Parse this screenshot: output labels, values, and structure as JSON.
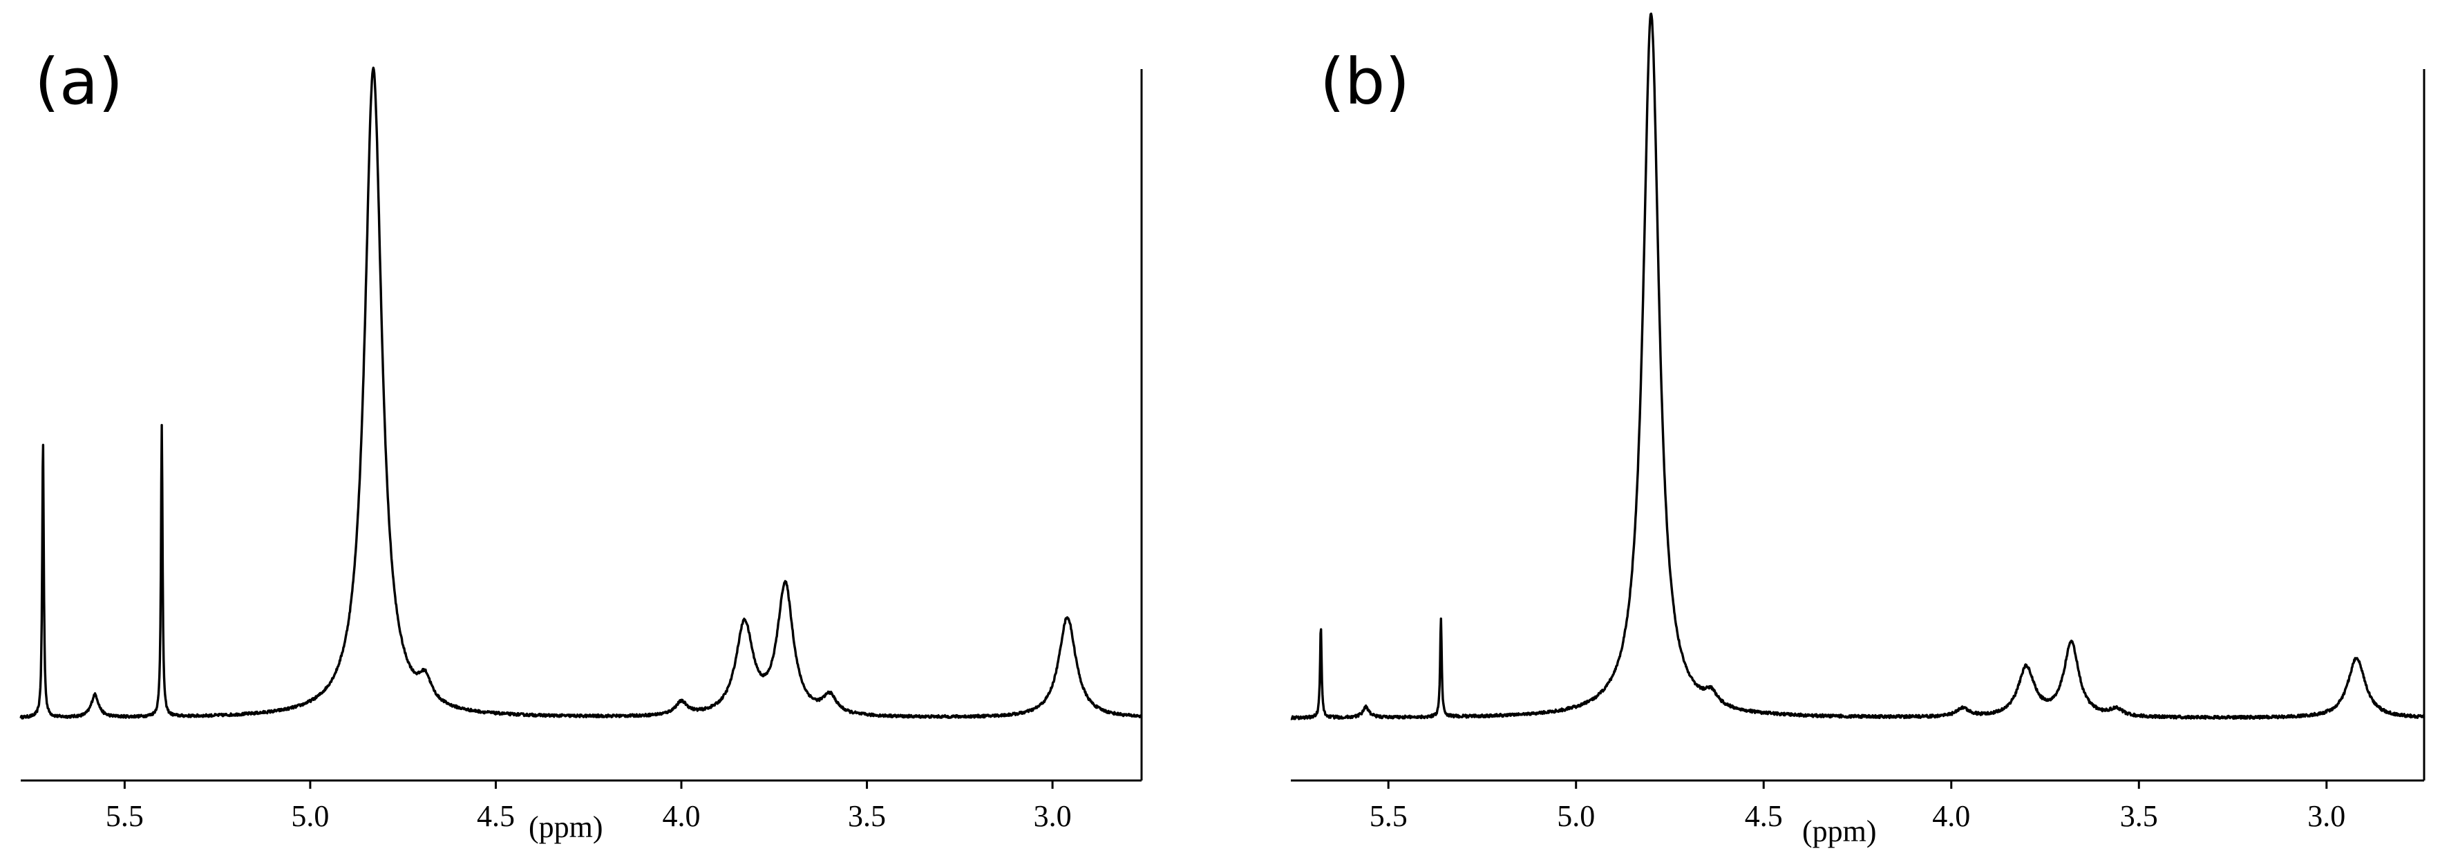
{
  "chart_data": [
    {
      "type": "line",
      "panel_label": "(a)",
      "xlabel": "(ppm)",
      "ylabel": "",
      "x_reversed": true,
      "xlim": [
        5.78,
        2.76
      ],
      "ylim": [
        0,
        1.0
      ],
      "x_ticks": [
        5.5,
        5.0,
        4.5,
        4.0,
        3.5,
        3.0
      ],
      "x_tick_labels": [
        "5.5",
        "5.0",
        "4.5",
        "4.0",
        "3.5",
        "3.0"
      ],
      "grid": false,
      "peaks": [
        {
          "x": 5.72,
          "height": 0.43,
          "width": 0.0025
        },
        {
          "x": 5.58,
          "height": 0.035,
          "width": 0.012
        },
        {
          "x": 5.4,
          "height": 0.45,
          "width": 0.0025
        },
        {
          "x": 4.83,
          "height": 1.0,
          "width": 0.028,
          "truncated": true
        },
        {
          "x": 4.69,
          "height": 0.035,
          "width": 0.02
        },
        {
          "x": 4.0,
          "height": 0.02,
          "width": 0.02
        },
        {
          "x": 3.83,
          "height": 0.14,
          "width": 0.028
        },
        {
          "x": 3.72,
          "height": 0.2,
          "width": 0.026
        },
        {
          "x": 3.6,
          "height": 0.028,
          "width": 0.022
        },
        {
          "x": 2.96,
          "height": 0.155,
          "width": 0.028
        }
      ]
    },
    {
      "type": "line",
      "panel_label": "(b)",
      "xlabel": "(ppm)",
      "ylabel": "",
      "x_reversed": true,
      "xlim": [
        5.76,
        2.74
      ],
      "ylim": [
        0,
        1.0
      ],
      "x_ticks": [
        5.5,
        5.0,
        4.5,
        4.0,
        3.5,
        3.0
      ],
      "x_tick_labels": [
        "5.5",
        "5.0",
        "4.5",
        "4.0",
        "3.5",
        "3.0"
      ],
      "grid": false,
      "peaks": [
        {
          "x": 5.68,
          "height": 0.13,
          "width": 0.0025
        },
        {
          "x": 5.56,
          "height": 0.015,
          "width": 0.01
        },
        {
          "x": 5.36,
          "height": 0.14,
          "width": 0.0025
        },
        {
          "x": 4.8,
          "height": 1.0,
          "width": 0.026,
          "truncated": true
        },
        {
          "x": 4.64,
          "height": 0.018,
          "width": 0.02
        },
        {
          "x": 3.97,
          "height": 0.012,
          "width": 0.02
        },
        {
          "x": 3.8,
          "height": 0.07,
          "width": 0.026
        },
        {
          "x": 3.68,
          "height": 0.105,
          "width": 0.024
        },
        {
          "x": 3.56,
          "height": 0.01,
          "width": 0.02
        },
        {
          "x": 2.92,
          "height": 0.085,
          "width": 0.028
        }
      ]
    }
  ]
}
